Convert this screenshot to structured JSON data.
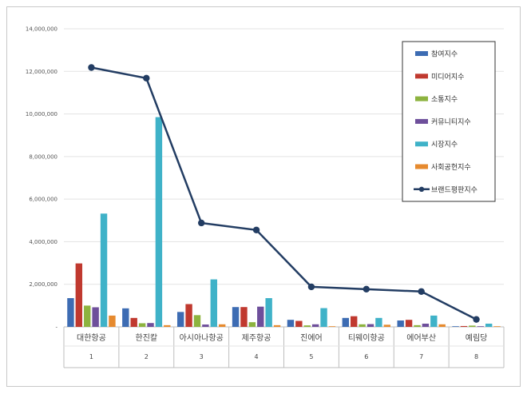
{
  "chart_data": {
    "type": "bar",
    "title": "",
    "xlabel": "",
    "ylabel": "",
    "ylim": [
      0,
      14000000
    ],
    "y_ticks": [
      "-",
      "2,000,000",
      "4,000,000",
      "6,000,000",
      "8,000,000",
      "10,000,000",
      "12,000,000",
      "14,000,000"
    ],
    "categories": [
      "대한항공",
      "한진칼",
      "아시아나항공",
      "제주항공",
      "진에어",
      "티웨이항공",
      "에어부산",
      "예림당"
    ],
    "category_index": [
      "1",
      "2",
      "3",
      "4",
      "5",
      "6",
      "7",
      "8"
    ],
    "series": [
      {
        "name": "참여지수",
        "kind": "bar",
        "color": "#3d6cb3",
        "values": [
          1350000,
          870000,
          700000,
          930000,
          330000,
          420000,
          300000,
          20000
        ]
      },
      {
        "name": "미디어지수",
        "kind": "bar",
        "color": "#c0392f",
        "values": [
          2980000,
          420000,
          1070000,
          930000,
          280000,
          500000,
          330000,
          40000
        ]
      },
      {
        "name": "소통지수",
        "kind": "bar",
        "color": "#8db33f",
        "values": [
          1000000,
          170000,
          550000,
          220000,
          70000,
          120000,
          80000,
          60000
        ]
      },
      {
        "name": "커뮤니티지수",
        "kind": "bar",
        "color": "#6e4f9b",
        "values": [
          920000,
          180000,
          110000,
          950000,
          120000,
          130000,
          150000,
          20000
        ]
      },
      {
        "name": "시장지수",
        "kind": "bar",
        "color": "#3fb2c8",
        "values": [
          5320000,
          9850000,
          2230000,
          1350000,
          880000,
          420000,
          530000,
          150000
        ]
      },
      {
        "name": "사회공헌지수",
        "kind": "bar",
        "color": "#e68a2e",
        "values": [
          530000,
          80000,
          120000,
          80000,
          30000,
          100000,
          120000,
          0
        ]
      },
      {
        "name": "브랜드평판지수",
        "kind": "line",
        "color": "#233d63",
        "values": [
          12180000,
          11680000,
          4880000,
          4550000,
          1880000,
          1770000,
          1660000,
          350000
        ]
      }
    ]
  }
}
